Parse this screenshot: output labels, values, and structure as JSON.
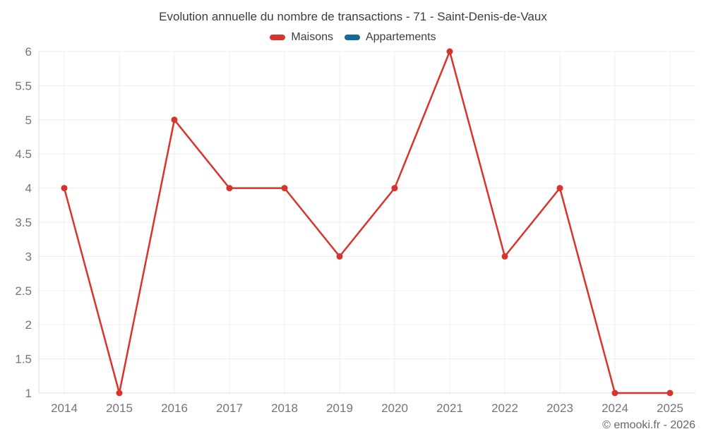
{
  "header": {
    "title": "Evolution annuelle du nombre de transactions - 71 - Saint-Denis-de-Vaux"
  },
  "legend": [
    {
      "label": "Maisons",
      "color": "#d9332b"
    },
    {
      "label": "Appartements",
      "color": "#136a9c"
    }
  ],
  "footer": {
    "copyright": "© emooki.fr - 2026"
  },
  "chart_data": {
    "type": "line",
    "title": "Evolution annuelle du nombre de transactions - 71 - Saint-Denis-de-Vaux",
    "categories": [
      "2014",
      "2015",
      "2016",
      "2017",
      "2018",
      "2019",
      "2020",
      "2021",
      "2022",
      "2023",
      "2024",
      "2025"
    ],
    "series": [
      {
        "name": "Maisons",
        "color": "#d9332b",
        "values": [
          4,
          1,
          5,
          4,
          4,
          3,
          4,
          6,
          3,
          4,
          1,
          1
        ]
      },
      {
        "name": "Appartements",
        "color": "#136a9c",
        "values": []
      }
    ],
    "xlabel": "",
    "ylabel": "",
    "ylim": [
      1,
      6
    ],
    "y_ticks": [
      1,
      1.5,
      2,
      2.5,
      3,
      3.5,
      4,
      4.5,
      5,
      5.5,
      6
    ],
    "grid": true,
    "legend_position": "top",
    "tick_color": "#757575",
    "grid_color": "#ededed",
    "axis_color": "#dcdcdc"
  }
}
